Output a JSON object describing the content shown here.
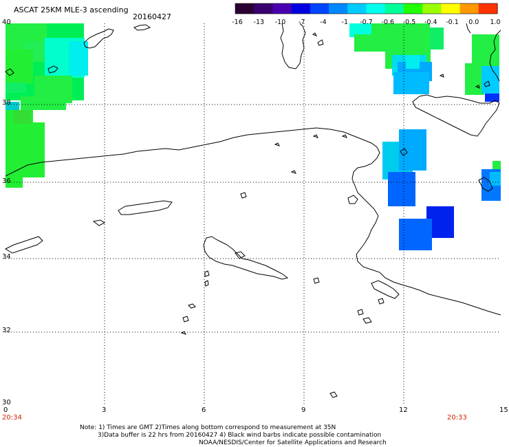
{
  "header": {
    "title": "ASCAT 25KM MLE-3 ascending",
    "date": "20160427"
  },
  "colorbar": {
    "tick_labels": [
      "-16",
      "-13",
      "-10",
      "-7",
      "-4",
      "-1",
      "-0.7",
      "-0.6",
      "-0.5",
      "-0.4",
      "-0.1",
      "0.0",
      "1.0"
    ],
    "colors": [
      "#2a0033",
      "#3a0070",
      "#4a00b0",
      "#0000e0",
      "#0044ff",
      "#0088ff",
      "#00ccff",
      "#00ffee",
      "#00ff99",
      "#22ff00",
      "#99ff00",
      "#ffff00",
      "#ff9900",
      "#ff3300"
    ]
  },
  "map": {
    "lat_labels": [
      "40",
      "38",
      "36",
      "34",
      "32",
      "30"
    ],
    "lon_labels": [
      "0",
      "3",
      "6",
      "9",
      "12",
      "15"
    ],
    "lat_range": [
      30,
      40
    ],
    "lon_range": [
      0,
      15
    ],
    "start_time": "20:34",
    "end_time": "20:33",
    "gridlines": true,
    "coastline_color": "#000000"
  },
  "notes": {
    "line1": "Note: 1) Times are GMT 2)Times along bottom correspond to measurement at 35N",
    "line2": "3)Data buffer is 22 hrs from 20160427 4) Black wind barbs indicate possible contamination",
    "line3": "NOAA/NESDIS/Center for Satellite Applications and Research"
  }
}
